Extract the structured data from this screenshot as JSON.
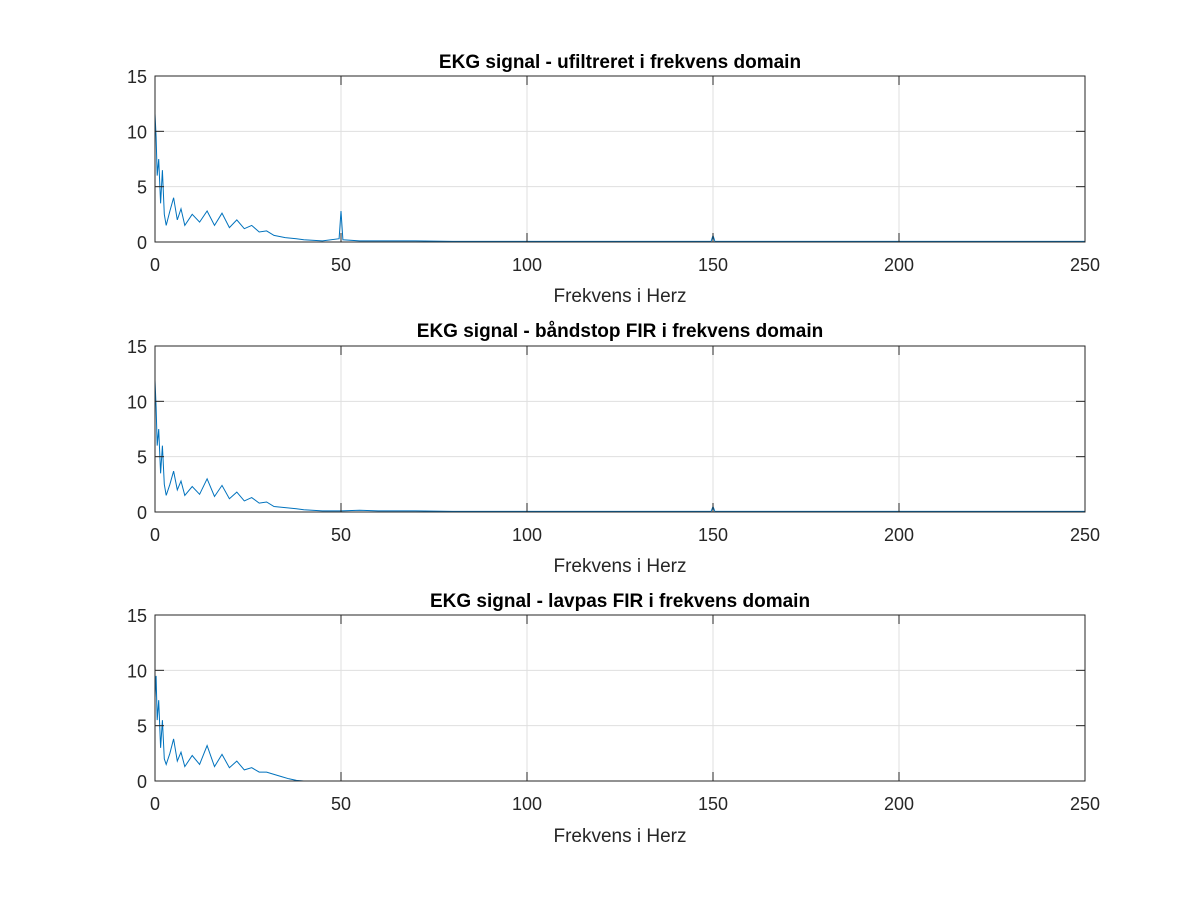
{
  "chart_data": [
    {
      "type": "line",
      "title": "EKG signal - ufiltreret i frekvens domain",
      "xlabel": "Frekvens i Herz",
      "ylabel": "",
      "xlim": [
        0,
        250
      ],
      "ylim": [
        0,
        15
      ],
      "xticks": [
        "0",
        "50",
        "100",
        "150",
        "200",
        "250"
      ],
      "yticks": [
        "0",
        "5",
        "10",
        "15"
      ],
      "grid": true,
      "series": [
        {
          "color": "#0072bd",
          "x": [
            0,
            0.3,
            0.6,
            1,
            1.5,
            2,
            2.5,
            3,
            4,
            5,
            6,
            7,
            8,
            10,
            12,
            14,
            16,
            18,
            20,
            22,
            24,
            26,
            28,
            30,
            32,
            35,
            38,
            40,
            45,
            49.5,
            50,
            50.5,
            55,
            60,
            70,
            80,
            100,
            120,
            149.5,
            150,
            150.5,
            160,
            200,
            250
          ],
          "values": [
            11.6,
            9.5,
            6.0,
            7.5,
            3.5,
            6.5,
            2.5,
            1.5,
            2.8,
            4.0,
            2.0,
            3.0,
            1.5,
            2.5,
            1.8,
            2.8,
            1.5,
            2.6,
            1.3,
            2.0,
            1.2,
            1.5,
            0.9,
            1.0,
            0.6,
            0.4,
            0.3,
            0.2,
            0.1,
            0.3,
            2.8,
            0.2,
            0.1,
            0.1,
            0.1,
            0.05,
            0.05,
            0.05,
            0.05,
            0.6,
            0.05,
            0.05,
            0.05,
            0.05
          ]
        }
      ]
    },
    {
      "type": "line",
      "title": "EKG signal - båndstop FIR i frekvens domain",
      "xlabel": "Frekvens i Herz",
      "ylabel": "",
      "xlim": [
        0,
        250
      ],
      "ylim": [
        0,
        15
      ],
      "xticks": [
        "0",
        "50",
        "100",
        "150",
        "200",
        "250"
      ],
      "yticks": [
        "0",
        "5",
        "10",
        "15"
      ],
      "grid": true,
      "series": [
        {
          "color": "#0072bd",
          "x": [
            0,
            0.3,
            0.6,
            1,
            1.5,
            2,
            2.5,
            3,
            4,
            5,
            6,
            7,
            8,
            10,
            12,
            14,
            16,
            18,
            20,
            22,
            24,
            26,
            28,
            30,
            32,
            35,
            38,
            40,
            45,
            50,
            55,
            60,
            70,
            80,
            100,
            120,
            149.5,
            150,
            150.5,
            160,
            200,
            250
          ],
          "values": [
            11.9,
            9.5,
            6.0,
            7.5,
            3.5,
            6.0,
            2.5,
            1.5,
            2.5,
            3.7,
            2.0,
            2.8,
            1.5,
            2.3,
            1.6,
            3.0,
            1.4,
            2.4,
            1.2,
            1.8,
            1.0,
            1.3,
            0.8,
            0.9,
            0.5,
            0.4,
            0.3,
            0.2,
            0.1,
            0.1,
            0.15,
            0.1,
            0.1,
            0.05,
            0.05,
            0.05,
            0.05,
            0.5,
            0.05,
            0.05,
            0.05,
            0.05
          ]
        }
      ]
    },
    {
      "type": "line",
      "title": "EKG signal - lavpas FIR i frekvens domain",
      "xlabel": "Frekvens i Herz",
      "ylabel": "",
      "xlim": [
        0,
        250
      ],
      "ylim": [
        0,
        15
      ],
      "xticks": [
        "0",
        "50",
        "100",
        "150",
        "200",
        "250"
      ],
      "yticks": [
        "0",
        "5",
        "10",
        "15"
      ],
      "grid": true,
      "series": [
        {
          "color": "#0072bd",
          "x": [
            0,
            0.3,
            0.6,
            1,
            1.5,
            2,
            2.5,
            3,
            4,
            5,
            6,
            7,
            8,
            10,
            12,
            14,
            16,
            18,
            20,
            22,
            24,
            26,
            28,
            30,
            32,
            34,
            36,
            38,
            40,
            50,
            100,
            150,
            200,
            250
          ],
          "values": [
            7.5,
            9.5,
            5.5,
            7.3,
            3.0,
            5.5,
            2.0,
            1.5,
            2.5,
            3.8,
            1.8,
            2.6,
            1.3,
            2.3,
            1.5,
            3.2,
            1.3,
            2.4,
            1.2,
            1.8,
            1.0,
            1.2,
            0.8,
            0.8,
            0.6,
            0.4,
            0.2,
            0.05,
            0.0,
            0.0,
            0.0,
            0.0,
            0.0,
            0.0
          ]
        }
      ]
    }
  ]
}
